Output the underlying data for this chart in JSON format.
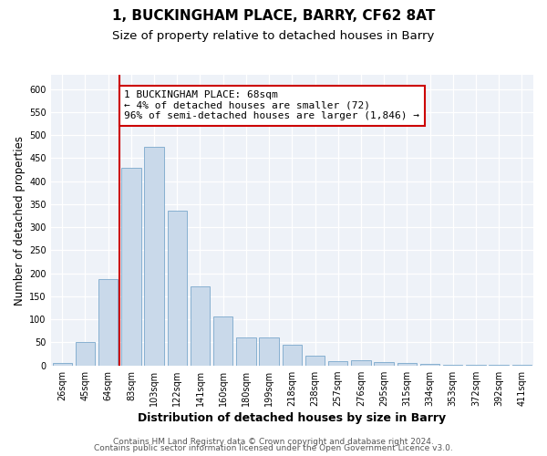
{
  "title": "1, BUCKINGHAM PLACE, BARRY, CF62 8AT",
  "subtitle": "Size of property relative to detached houses in Barry",
  "xlabel": "Distribution of detached houses by size in Barry",
  "ylabel": "Number of detached properties",
  "categories": [
    "26sqm",
    "45sqm",
    "64sqm",
    "83sqm",
    "103sqm",
    "122sqm",
    "141sqm",
    "160sqm",
    "180sqm",
    "199sqm",
    "218sqm",
    "238sqm",
    "257sqm",
    "276sqm",
    "295sqm",
    "315sqm",
    "334sqm",
    "353sqm",
    "372sqm",
    "392sqm",
    "411sqm"
  ],
  "values": [
    5,
    50,
    188,
    430,
    475,
    335,
    172,
    107,
    60,
    60,
    45,
    22,
    10,
    11,
    7,
    5,
    3,
    2,
    1,
    2,
    2
  ],
  "bar_color": "#c9d9ea",
  "bar_edge_color": "#7aa8cc",
  "background_color": "#eef2f8",
  "grid_color": "#ffffff",
  "vline_pos": 2.5,
  "vline_color": "#cc0000",
  "annotation_text": "1 BUCKINGHAM PLACE: 68sqm\n← 4% of detached houses are smaller (72)\n96% of semi-detached houses are larger (1,846) →",
  "annotation_box_facecolor": "#ffffff",
  "annotation_box_edgecolor": "#cc0000",
  "footer1": "Contains HM Land Registry data © Crown copyright and database right 2024.",
  "footer2": "Contains public sector information licensed under the Open Government Licence v3.0.",
  "ylim": [
    0,
    630
  ],
  "title_fontsize": 11,
  "subtitle_fontsize": 9.5,
  "xlabel_fontsize": 9,
  "ylabel_fontsize": 8.5,
  "tick_fontsize": 7,
  "annotation_fontsize": 8,
  "footer_fontsize": 6.5
}
